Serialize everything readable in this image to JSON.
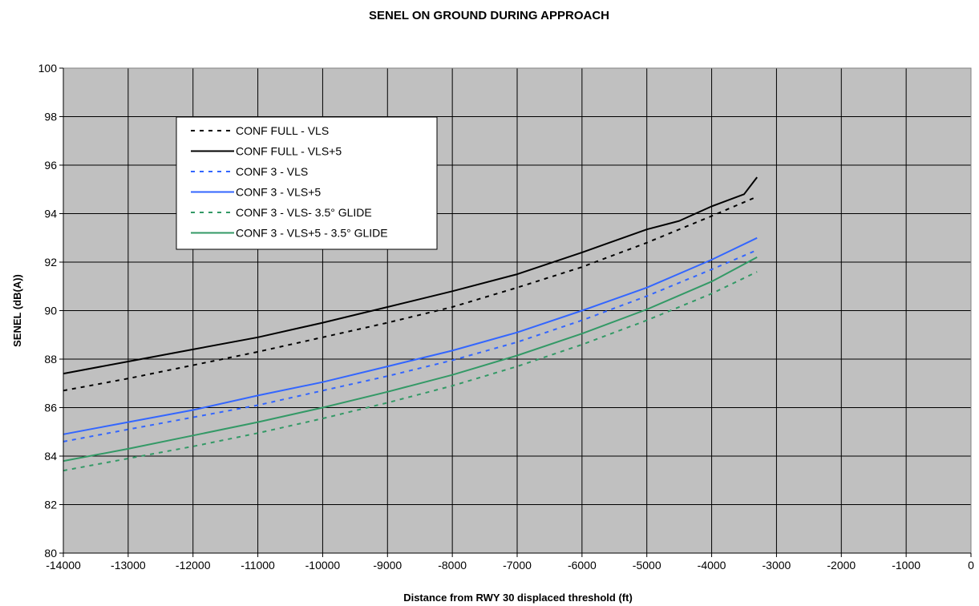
{
  "chart_data": {
    "type": "line",
    "title": "SENEL ON GROUND DURING APPROACH",
    "xlabel": "Distance from RWY 30 displaced threshold (ft)",
    "ylabel": "SENEL (dB(A))",
    "xlim": [
      -14000,
      0
    ],
    "ylim": [
      80,
      100
    ],
    "xticks": [
      -14000,
      -13000,
      -12000,
      -11000,
      -10000,
      -9000,
      -8000,
      -7000,
      -6000,
      -5000,
      -4000,
      -3000,
      -2000,
      -1000,
      0
    ],
    "yticks": [
      80,
      82,
      84,
      86,
      88,
      90,
      92,
      94,
      96,
      98,
      100
    ],
    "grid": true,
    "background": "#c0c0c0",
    "legend_position": "top-left",
    "series": [
      {
        "name": "CONF FULL - VLS",
        "color": "#000000",
        "dashed": true,
        "x": [
          -14000,
          -13000,
          -12000,
          -11000,
          -10000,
          -9000,
          -8000,
          -7000,
          -6000,
          -5000,
          -4000,
          -3300
        ],
        "y": [
          86.7,
          87.2,
          87.75,
          88.3,
          88.9,
          89.5,
          90.15,
          90.95,
          91.8,
          92.8,
          93.9,
          94.7
        ]
      },
      {
        "name": "CONF FULL - VLS+5",
        "color": "#000000",
        "dashed": false,
        "x": [
          -14000,
          -13000,
          -12000,
          -11000,
          -10000,
          -9000,
          -8000,
          -7000,
          -6000,
          -5000,
          -4500,
          -4000,
          -3500,
          -3300
        ],
        "y": [
          87.4,
          87.9,
          88.4,
          88.9,
          89.5,
          90.15,
          90.8,
          91.5,
          92.4,
          93.35,
          93.7,
          94.3,
          94.8,
          95.5
        ]
      },
      {
        "name": "CONF 3 - VLS",
        "color": "#3366ff",
        "dashed": true,
        "x": [
          -14000,
          -13000,
          -12000,
          -11000,
          -10000,
          -9000,
          -8000,
          -7000,
          -6000,
          -5000,
          -4000,
          -3300
        ],
        "y": [
          84.6,
          85.1,
          85.6,
          86.1,
          86.7,
          87.3,
          87.95,
          88.7,
          89.6,
          90.6,
          91.7,
          92.5
        ]
      },
      {
        "name": "CONF 3 - VLS+5",
        "color": "#3366ff",
        "dashed": false,
        "x": [
          -14000,
          -13500,
          -13000,
          -12000,
          -11000,
          -10000,
          -9000,
          -8000,
          -7000,
          -6000,
          -5000,
          -4000,
          -3300
        ],
        "y": [
          84.9,
          85.15,
          85.4,
          85.9,
          86.5,
          87.05,
          87.7,
          88.35,
          89.1,
          90.0,
          90.95,
          92.1,
          93.0
        ]
      },
      {
        "name": "CONF 3 - VLS- 3.5° GLIDE",
        "color": "#339966",
        "dashed": true,
        "x": [
          -14000,
          -13000,
          -12000,
          -11000,
          -10000,
          -9000,
          -8000,
          -7000,
          -6000,
          -5000,
          -4000,
          -3300
        ],
        "y": [
          83.4,
          83.9,
          84.4,
          84.95,
          85.55,
          86.2,
          86.9,
          87.7,
          88.6,
          89.6,
          90.7,
          91.6
        ]
      },
      {
        "name": "CONF 3 - VLS+5 - 3.5° GLIDE",
        "color": "#339966",
        "dashed": false,
        "x": [
          -14000,
          -13000,
          -12000,
          -11000,
          -10000,
          -9000,
          -8000,
          -7000,
          -6000,
          -5000,
          -4000,
          -3300
        ],
        "y": [
          83.8,
          84.3,
          84.85,
          85.4,
          86.0,
          86.65,
          87.35,
          88.15,
          89.05,
          90.05,
          91.2,
          92.2
        ]
      }
    ]
  }
}
